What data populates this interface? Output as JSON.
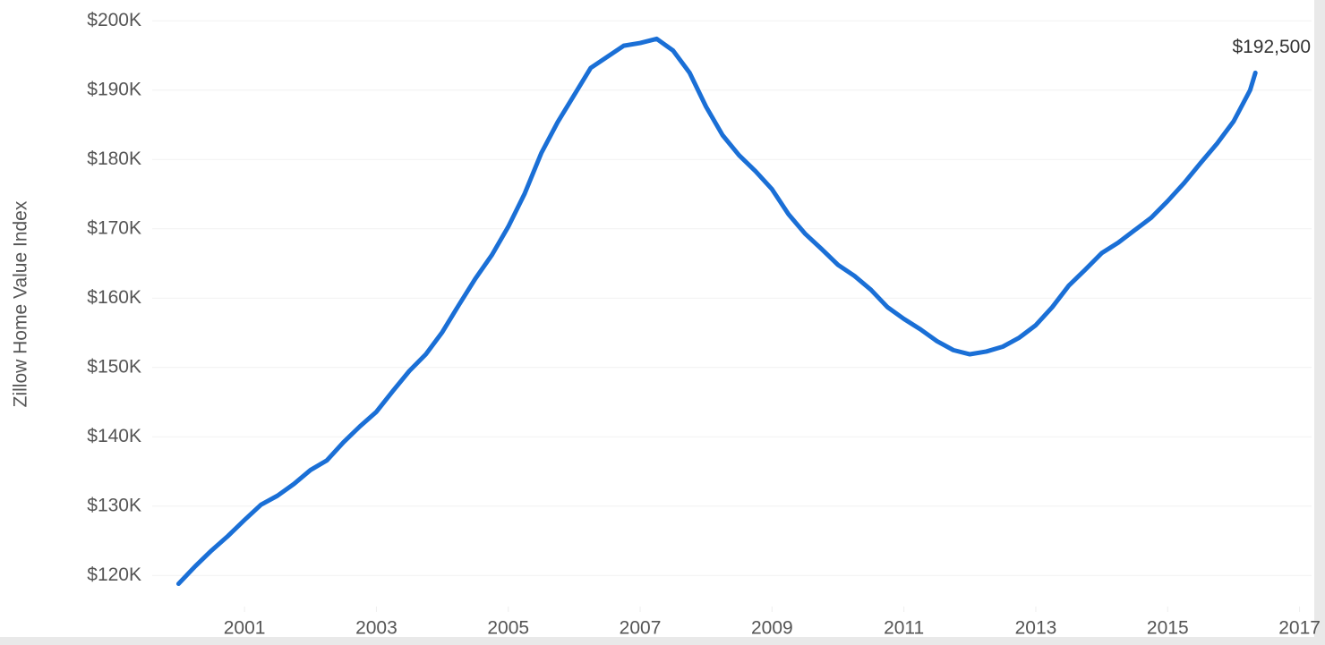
{
  "chart_data": {
    "type": "line",
    "y_axis_label": "Zillow Home Value Index",
    "x": [
      2000,
      2000.25,
      2000.5,
      2000.75,
      2001,
      2001.25,
      2001.5,
      2001.75,
      2002,
      2002.25,
      2002.5,
      2002.75,
      2003,
      2003.25,
      2003.5,
      2003.75,
      2004,
      2004.25,
      2004.5,
      2004.75,
      2005,
      2005.25,
      2005.5,
      2005.75,
      2006,
      2006.25,
      2006.5,
      2006.75,
      2007,
      2007.25,
      2007.5,
      2007.75,
      2008,
      2008.25,
      2008.5,
      2008.75,
      2009,
      2009.25,
      2009.5,
      2009.75,
      2010,
      2010.25,
      2010.5,
      2010.75,
      2011,
      2011.25,
      2011.5,
      2011.75,
      2012,
      2012.25,
      2012.5,
      2012.75,
      2013,
      2013.25,
      2013.5,
      2013.75,
      2014,
      2014.25,
      2014.5,
      2014.75,
      2015,
      2015.25,
      2015.5,
      2015.75,
      2016,
      2016.25,
      2016.33
    ],
    "series": [
      {
        "color": "#1a6fd6",
        "values": [
          118800,
          121300,
          123600,
          125700,
          128000,
          130200,
          131500,
          133200,
          135200,
          136600,
          139200,
          141500,
          143600,
          146600,
          149500,
          151900,
          155100,
          159000,
          162800,
          166200,
          170300,
          175100,
          180900,
          185400,
          189300,
          193200,
          194800,
          196400,
          196800,
          197400,
          195700,
          192500,
          187600,
          183500,
          180600,
          178300,
          175700,
          172100,
          169300,
          167100,
          164800,
          163200,
          161200,
          158700,
          157000,
          155500,
          153800,
          152500,
          151900,
          152300,
          153000,
          154300,
          156100,
          158700,
          161800,
          164100,
          166500,
          168000,
          169800,
          171600,
          174000,
          176600,
          179500,
          182300,
          185500,
          190000,
          192500
        ],
        "value_labels": [
          null,
          null,
          null,
          null,
          null,
          null,
          null,
          null,
          null,
          null,
          null,
          null,
          null,
          null,
          null,
          null,
          null,
          null,
          null,
          null,
          null,
          null,
          null,
          null,
          null,
          null,
          null,
          null,
          null,
          null,
          null,
          null,
          null,
          null,
          null,
          null,
          null,
          null,
          null,
          null,
          null,
          null,
          null,
          null,
          null,
          null,
          null,
          null,
          null,
          null,
          null,
          null,
          null,
          null,
          null,
          null,
          null,
          null,
          null,
          null,
          null,
          null,
          null,
          null,
          null,
          null,
          "$192,500"
        ]
      }
    ],
    "xlim": [
      1999.6,
      2017.25
    ],
    "xticks": [
      2001,
      2003,
      2005,
      2007,
      2009,
      2011,
      2013,
      2015,
      2017
    ],
    "ylim": [
      115000,
      203000
    ],
    "yticks": [
      {
        "value": 120000,
        "label": "$120K"
      },
      {
        "value": 130000,
        "label": "$130K"
      },
      {
        "value": 140000,
        "label": "$140K"
      },
      {
        "value": 150000,
        "label": "$150K"
      },
      {
        "value": 160000,
        "label": "$160K"
      },
      {
        "value": 170000,
        "label": "$170K"
      },
      {
        "value": 180000,
        "label": "$180K"
      },
      {
        "value": 190000,
        "label": "$190K"
      },
      {
        "value": 200000,
        "label": "$200K"
      }
    ],
    "grid": true
  }
}
